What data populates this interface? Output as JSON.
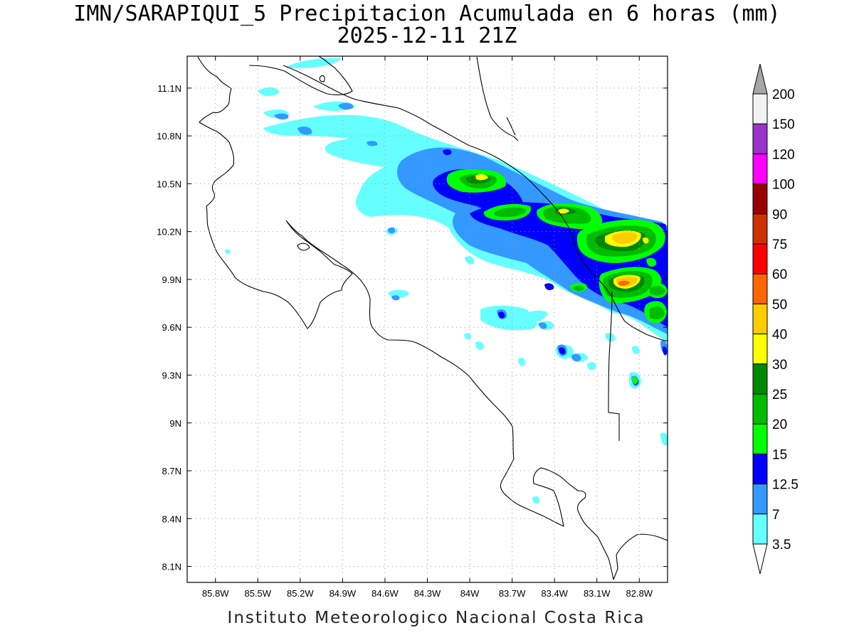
{
  "title": {
    "line1": "IMN/SARAPIQUI_5 Precipitacion Acumulada en 6 horas (mm)",
    "line2": "2025-12-11 21Z"
  },
  "map": {
    "lon_range": [
      -86.0,
      -82.6
    ],
    "lat_range": [
      8.0,
      11.3
    ],
    "lon_ticks": [
      "85.8W",
      "85.5W",
      "85.2W",
      "84.9W",
      "84.6W",
      "84.3W",
      "84W",
      "83.7W",
      "83.4W",
      "83.1W",
      "82.8W"
    ],
    "lat_ticks": [
      "11.1N",
      "10.8N",
      "10.5N",
      "10.2N",
      "9.9N",
      "9.6N",
      "9.3N",
      "9N",
      "8.7N",
      "8.4N",
      "8.1N"
    ],
    "grid": "dotted"
  },
  "colorbar": {
    "labels": [
      "200",
      "150",
      "120",
      "100",
      "90",
      "75",
      "60",
      "50",
      "40",
      "30",
      "25",
      "20",
      "15",
      "12.5",
      "7",
      "3.5"
    ],
    "colors": [
      "#a6a6a6",
      "#f2f2f2",
      "#9933cc",
      "#ff00ff",
      "#990000",
      "#cc3300",
      "#ff0000",
      "#ff6600",
      "#ffcc00",
      "#ffff00",
      "#008800",
      "#00bb00",
      "#00ff00",
      "#0000ff",
      "#3399ff",
      "#66ffff",
      "#ffffff"
    ]
  },
  "credit": "Instituto Meteorologico Nacional Costa Rica"
}
